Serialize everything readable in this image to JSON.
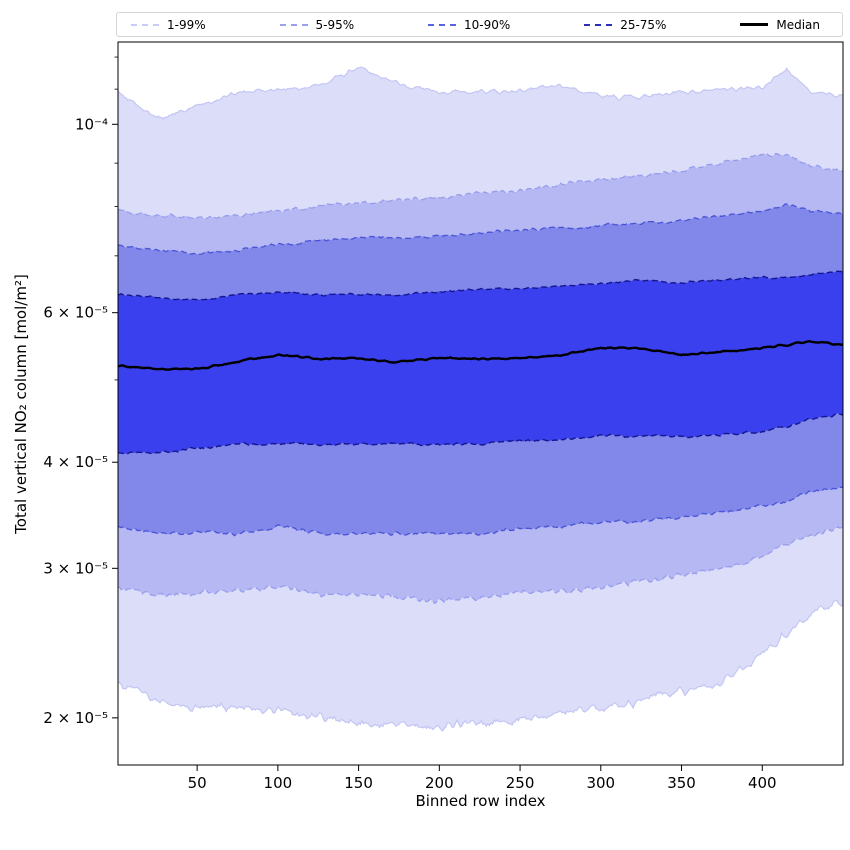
{
  "figure": {
    "background": "#ffffff"
  },
  "chart_data": {
    "type": "area",
    "title": "",
    "xlabel": "Binned row index",
    "ylabel": "Total vertical NO₂ column [mol/m²]",
    "yscale": "log",
    "grid": false,
    "xlim": [
      1,
      450
    ],
    "ylim": [
      1.76e-05,
      0.000125
    ],
    "x_ticks": [
      50,
      100,
      150,
      200,
      250,
      300,
      350,
      400
    ],
    "y_major_ticks": [
      {
        "value": 0.0001,
        "label": "10⁻⁴"
      },
      {
        "value": 6e-05,
        "label": "6 × 10⁻⁵"
      },
      {
        "value": 4e-05,
        "label": "4 × 10⁻⁵"
      },
      {
        "value": 3e-05,
        "label": "3 × 10⁻⁵"
      },
      {
        "value": 2e-05,
        "label": "2 × 10⁻⁵"
      }
    ],
    "y_minor_ticks": [
      5e-05,
      7e-05,
      8e-05,
      9e-05,
      0.00011,
      0.00012
    ],
    "legend": {
      "position": "top",
      "entries": [
        {
          "label": "1-99%",
          "color": "#c9ccf5",
          "style": "dashed",
          "weight": 2
        },
        {
          "label": "5-95%",
          "color": "#9aa0ee",
          "style": "dashed",
          "weight": 2
        },
        {
          "label": "10-90%",
          "color": "#5a63e2",
          "style": "dashed",
          "weight": 2
        },
        {
          "label": "25-75%",
          "color": "#2a2fb4",
          "style": "dashed",
          "weight": 2
        },
        {
          "label": "Median",
          "color": "#000000",
          "style": "solid",
          "weight": 3
        }
      ]
    },
    "bands": [
      {
        "name": "1-99",
        "low": "p1",
        "high": "p99",
        "fill": "#dcddf8",
        "edge": "#c3c6f4",
        "edge_dash": false,
        "edge_width": 1.2
      },
      {
        "name": "5-95",
        "low": "p5",
        "high": "p95",
        "fill": "#b5b8f2",
        "edge": "#979dee",
        "edge_dash": true,
        "edge_width": 1.3
      },
      {
        "name": "10-90",
        "low": "p10",
        "high": "p90",
        "fill": "#8188ea",
        "edge": "#4a53d6",
        "edge_dash": true,
        "edge_width": 1.3
      },
      {
        "name": "25-75",
        "low": "p25",
        "high": "p75",
        "fill": "#3a40ee",
        "edge": "#16168c",
        "edge_dash": true,
        "edge_width": 1.4
      }
    ],
    "median_color": "#000000",
    "x": [
      1,
      25,
      50,
      75,
      100,
      125,
      150,
      175,
      200,
      225,
      250,
      275,
      300,
      325,
      350,
      375,
      400,
      415,
      430,
      450
    ],
    "series": {
      "p1": [
        2.2e-05,
        2.1e-05,
        2.05e-05,
        2.05e-05,
        2.05e-05,
        2e-05,
        1.97e-05,
        1.96e-05,
        1.95e-05,
        1.97e-05,
        2e-05,
        2.02e-05,
        2.05e-05,
        2.1e-05,
        2.15e-05,
        2.2e-05,
        2.4e-05,
        2.5e-05,
        2.65e-05,
        2.75e-05
      ],
      "p5": [
        2.85e-05,
        2.8e-05,
        2.8e-05,
        2.82e-05,
        2.85e-05,
        2.8e-05,
        2.8e-05,
        2.78e-05,
        2.75e-05,
        2.78e-05,
        2.8e-05,
        2.82e-05,
        2.85e-05,
        2.9e-05,
        2.95e-05,
        3e-05,
        3.1e-05,
        3.2e-05,
        3.3e-05,
        3.35e-05
      ],
      "p10": [
        3.35e-05,
        3.3e-05,
        3.3e-05,
        3.3e-05,
        3.35e-05,
        3.3e-05,
        3.3e-05,
        3.3e-05,
        3.3e-05,
        3.3e-05,
        3.35e-05,
        3.35e-05,
        3.4e-05,
        3.4e-05,
        3.45e-05,
        3.5e-05,
        3.55e-05,
        3.6e-05,
        3.7e-05,
        3.75e-05
      ],
      "p25": [
        4.1e-05,
        4.1e-05,
        4.15e-05,
        4.2e-05,
        4.2e-05,
        4.2e-05,
        4.2e-05,
        4.2e-05,
        4.2e-05,
        4.2e-05,
        4.25e-05,
        4.25e-05,
        4.3e-05,
        4.3e-05,
        4.3e-05,
        4.3e-05,
        4.35e-05,
        4.4e-05,
        4.5e-05,
        4.55e-05
      ],
      "median": [
        5.2e-05,
        5.15e-05,
        5.15e-05,
        5.25e-05,
        5.35e-05,
        5.3e-05,
        5.3e-05,
        5.25e-05,
        5.3e-05,
        5.3e-05,
        5.3e-05,
        5.35e-05,
        5.45e-05,
        5.45e-05,
        5.35e-05,
        5.4e-05,
        5.45e-05,
        5.5e-05,
        5.55e-05,
        5.5e-05
      ],
      "p75": [
        6.3e-05,
        6.25e-05,
        6.2e-05,
        6.3e-05,
        6.35e-05,
        6.3e-05,
        6.3e-05,
        6.3e-05,
        6.35e-05,
        6.4e-05,
        6.4e-05,
        6.45e-05,
        6.5e-05,
        6.55e-05,
        6.5e-05,
        6.55e-05,
        6.6e-05,
        6.6e-05,
        6.65e-05,
        6.7e-05
      ],
      "p90": [
        7.2e-05,
        7.1e-05,
        7.05e-05,
        7.1e-05,
        7.2e-05,
        7.3e-05,
        7.35e-05,
        7.35e-05,
        7.4e-05,
        7.45e-05,
        7.5e-05,
        7.55e-05,
        7.6e-05,
        7.65e-05,
        7.7e-05,
        7.8e-05,
        7.9e-05,
        8.05e-05,
        7.9e-05,
        7.85e-05
      ],
      "p95": [
        7.9e-05,
        7.8e-05,
        7.75e-05,
        7.8e-05,
        7.9e-05,
        8e-05,
        8.1e-05,
        8.15e-05,
        8.2e-05,
        8.3e-05,
        8.35e-05,
        8.5e-05,
        8.6e-05,
        8.7e-05,
        8.8e-05,
        9e-05,
        9.2e-05,
        9.25e-05,
        8.95e-05,
        8.85e-05
      ],
      "p99": [
        0.000109,
        0.0001015,
        0.000105,
        0.000109,
        0.0001095,
        0.000111,
        0.0001165,
        0.0001115,
        0.000109,
        0.000109,
        0.00011,
        0.0001115,
        0.000108,
        0.0001075,
        0.000109,
        0.00011,
        0.0001105,
        0.000116,
        0.000109,
        0.000108
      ]
    }
  }
}
